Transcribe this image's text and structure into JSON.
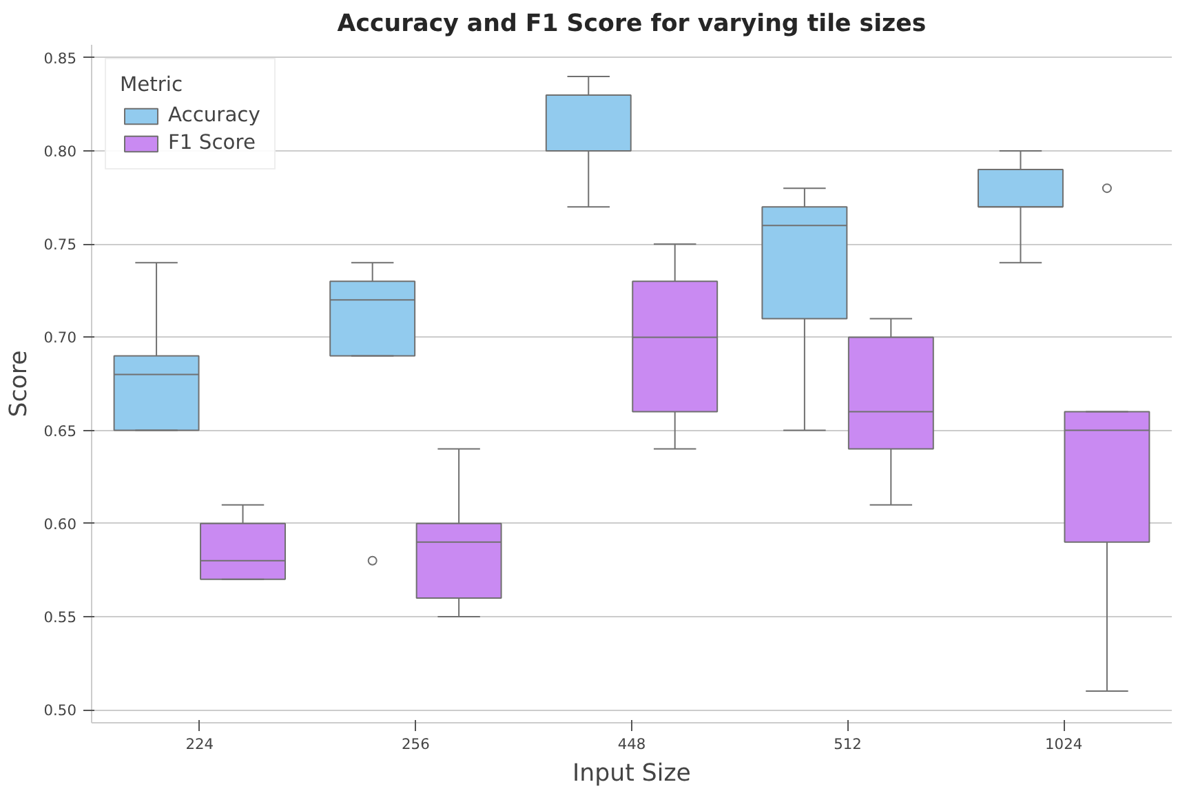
{
  "chart_data": {
    "type": "box",
    "title": "Accuracy and F1 Score for varying tile sizes",
    "xlabel": "Input Size",
    "ylabel": "Score",
    "legend_title": "Metric",
    "categories": [
      "224",
      "256",
      "448",
      "512",
      "1024"
    ],
    "ylim": [
      0.493,
      0.857
    ],
    "yticks": [
      {
        "value": 0.5,
        "label": "0.50"
      },
      {
        "value": 0.55,
        "label": "0.55"
      },
      {
        "value": 0.6,
        "label": "0.60"
      },
      {
        "value": 0.65,
        "label": "0.65"
      },
      {
        "value": 0.7,
        "label": "0.70"
      },
      {
        "value": 0.75,
        "label": "0.75"
      },
      {
        "value": 0.8,
        "label": "0.80"
      },
      {
        "value": 0.85,
        "label": "0.85"
      }
    ],
    "grid": "y",
    "legend": "top left",
    "series": [
      {
        "name": "Accuracy",
        "color": "#92cbee",
        "boxes": [
          {
            "low": 0.65,
            "q1": 0.65,
            "median": 0.68,
            "q3": 0.69,
            "high": 0.74
          },
          {
            "low": 0.69,
            "q1": 0.69,
            "median": 0.72,
            "q3": 0.73,
            "high": 0.74,
            "outliers": [
              0.58
            ]
          },
          {
            "low": 0.77,
            "q1": 0.8,
            "median": 0.8,
            "q3": 0.83,
            "high": 0.84
          },
          {
            "low": 0.65,
            "q1": 0.71,
            "median": 0.76,
            "q3": 0.77,
            "high": 0.78
          },
          {
            "low": 0.74,
            "q1": 0.77,
            "median": 0.77,
            "q3": 0.79,
            "high": 0.8
          }
        ]
      },
      {
        "name": "F1 Score",
        "color": "#c98af2",
        "boxes": [
          {
            "low": 0.57,
            "q1": 0.57,
            "median": 0.58,
            "q3": 0.6,
            "high": 0.61
          },
          {
            "low": 0.55,
            "q1": 0.56,
            "median": 0.59,
            "q3": 0.6,
            "high": 0.64
          },
          {
            "low": 0.64,
            "q1": 0.66,
            "median": 0.7,
            "q3": 0.73,
            "high": 0.75
          },
          {
            "low": 0.61,
            "q1": 0.64,
            "median": 0.66,
            "q3": 0.7,
            "high": 0.71
          },
          {
            "low": 0.51,
            "q1": 0.59,
            "median": 0.65,
            "q3": 0.66,
            "high": 0.66,
            "outliers": [
              0.78
            ]
          }
        ]
      }
    ]
  }
}
